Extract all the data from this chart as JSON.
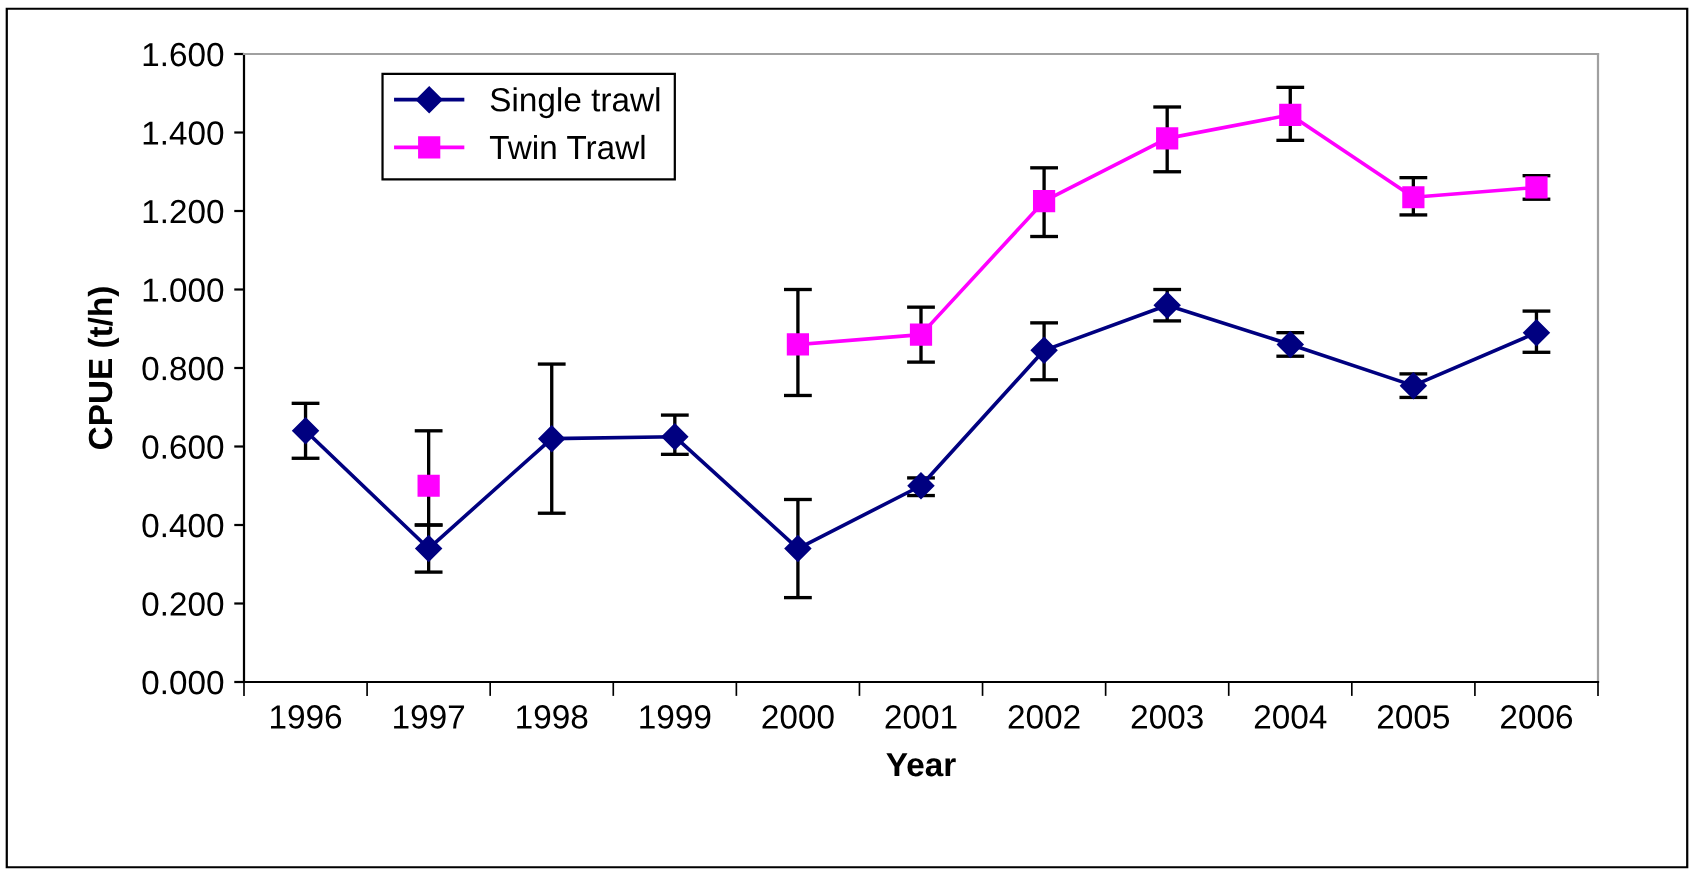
{
  "chart_data": {
    "type": "line",
    "xlabel": "Year",
    "ylabel": "CPUE (t/h)",
    "categories": [
      "1996",
      "1997",
      "1998",
      "1999",
      "2000",
      "2001",
      "2002",
      "2003",
      "2004",
      "2005",
      "2006"
    ],
    "series": [
      {
        "name": "Single trawl",
        "color": "#000080",
        "marker": "diamond",
        "values": [
          0.64,
          0.34,
          0.62,
          0.625,
          0.34,
          0.5,
          0.845,
          0.96,
          0.86,
          0.755,
          0.89
        ],
        "errors": [
          [
            0.57,
            0.71
          ],
          [
            0.28,
            0.4
          ],
          [
            0.43,
            0.81
          ],
          [
            0.58,
            0.68
          ],
          [
            0.215,
            0.465
          ],
          [
            0.475,
            0.52
          ],
          [
            0.77,
            0.915
          ],
          [
            0.92,
            1.0
          ],
          [
            0.83,
            0.89
          ],
          [
            0.725,
            0.785
          ],
          [
            0.84,
            0.945
          ]
        ]
      },
      {
        "name": "Twin Trawl",
        "color": "#ff00ff",
        "marker": "square",
        "values": [
          null,
          0.5,
          null,
          null,
          0.86,
          0.885,
          1.225,
          1.385,
          1.445,
          1.235,
          1.26
        ],
        "errors": [
          null,
          [
            0.4,
            0.64
          ],
          null,
          null,
          [
            0.73,
            1.0
          ],
          [
            0.815,
            0.955
          ],
          [
            1.135,
            1.31
          ],
          [
            1.3,
            1.465
          ],
          [
            1.38,
            1.515
          ],
          [
            1.19,
            1.285
          ],
          [
            1.23,
            1.29
          ]
        ]
      }
    ],
    "ylim": [
      0,
      1.6
    ],
    "yticks": [
      {
        "value": 0,
        "label": "0.000"
      },
      {
        "value": 0.2,
        "label": "0.200"
      },
      {
        "value": 0.4,
        "label": "0.400"
      },
      {
        "value": 0.6,
        "label": "0.600"
      },
      {
        "value": 0.8,
        "label": "0.800"
      },
      {
        "value": 1.0,
        "label": "1.000"
      },
      {
        "value": 1.2,
        "label": "1.200"
      },
      {
        "value": 1.4,
        "label": "1.400"
      },
      {
        "value": 1.6,
        "label": "1.600"
      }
    ],
    "grid": false,
    "legend": "top left",
    "line_style": "solid"
  }
}
